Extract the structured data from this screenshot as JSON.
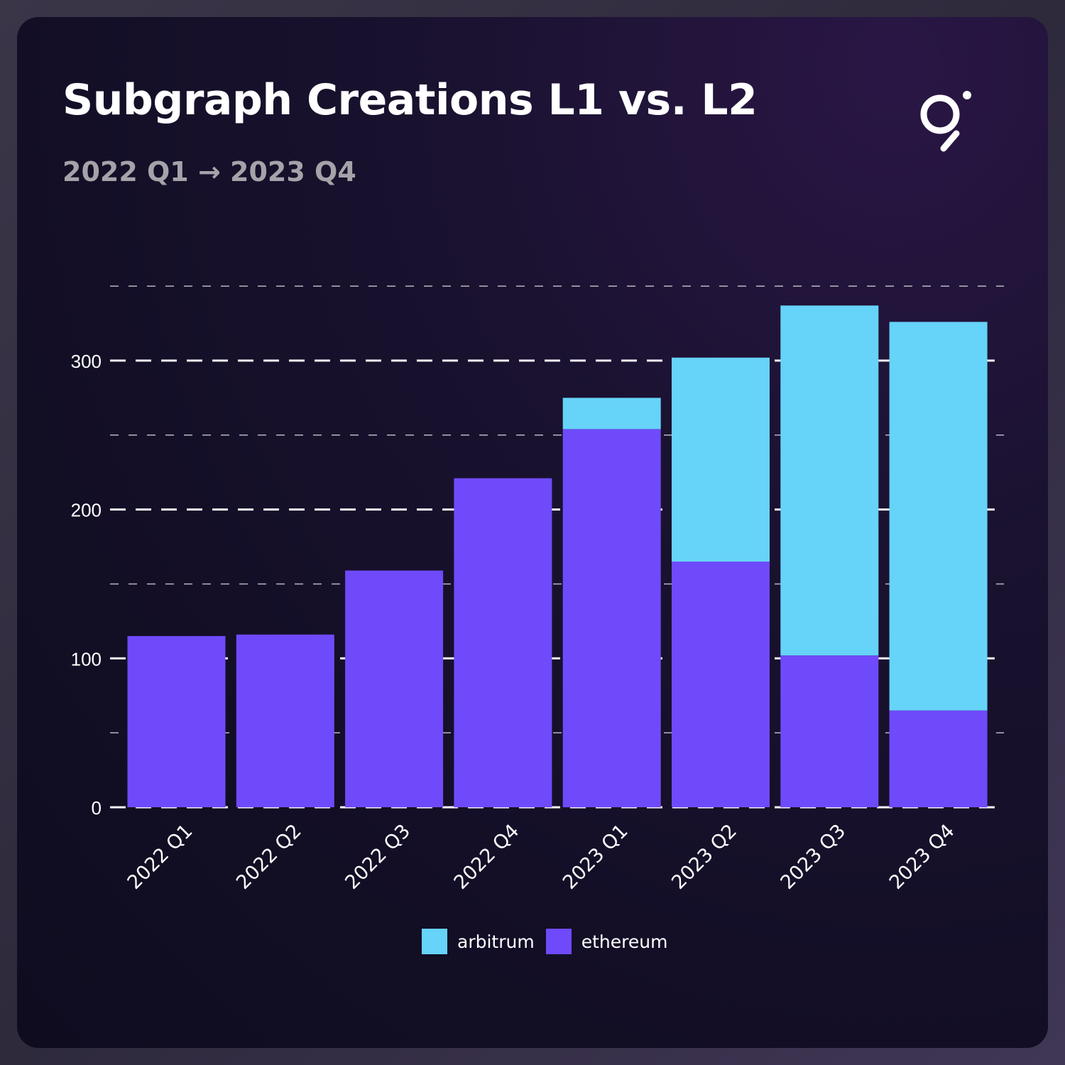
{
  "header": {
    "title": "Subgraph Creations L1 vs. L2",
    "subtitle": "2022 Q1 → 2023 Q4"
  },
  "logo": {
    "icon": "the-graph-logo-icon",
    "color": "#ffffff"
  },
  "colors": {
    "arbitrum": "#66d3f8",
    "ethereum": "#6f4afb",
    "grid": "#ffffff"
  },
  "chart_data": {
    "type": "bar",
    "stacked": true,
    "title": "Subgraph Creations L1 vs. L2",
    "subtitle": "2022 Q1 → 2023 Q4",
    "xlabel": "",
    "ylabel": "",
    "categories": [
      "2022 Q1",
      "2022 Q2",
      "2022 Q3",
      "2022 Q4",
      "2023 Q1",
      "2023 Q2",
      "2023 Q3",
      "2023 Q4"
    ],
    "series": [
      {
        "name": "ethereum",
        "values": [
          115,
          116,
          159,
          221,
          254,
          165,
          102,
          65
        ]
      },
      {
        "name": "arbitrum",
        "values": [
          0,
          0,
          0,
          0,
          21,
          137,
          235,
          261
        ]
      }
    ],
    "ylim": [
      0,
      350
    ],
    "yticks": [
      0,
      100,
      200,
      300
    ],
    "grid": true,
    "legend": {
      "placement": "bottom-center",
      "entries": [
        "arbitrum",
        "ethereum"
      ]
    }
  }
}
